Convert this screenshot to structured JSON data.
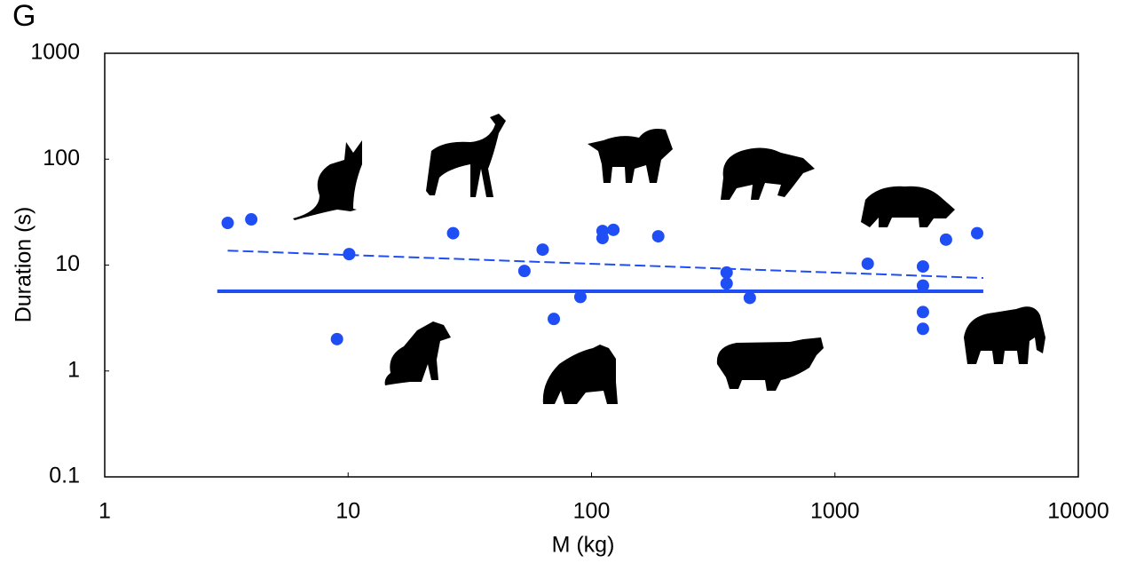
{
  "chart_data": {
    "type": "scatter",
    "panel_label": "G",
    "x_label": "M (kg)",
    "y_label": "Duration (s)",
    "xscale": "log",
    "yscale": "log",
    "xlim": [
      1,
      10000
    ],
    "ylim": [
      0.1,
      1000
    ],
    "xticks": [
      1,
      10,
      100,
      1000,
      10000
    ],
    "yticks": [
      0.1,
      1,
      10,
      100,
      1000
    ],
    "series": [
      {
        "color": "#1f4ef5",
        "x": [
          3.2,
          4.0,
          9.0,
          10.1,
          27,
          53,
          63,
          70,
          90,
          111,
          111,
          123,
          188,
          359,
          359,
          447,
          1364,
          2300,
          2300,
          2300,
          2300,
          2860,
          3840
        ],
        "values": [
          25,
          27,
          2.0,
          12.7,
          20,
          8.8,
          14,
          3.1,
          5.0,
          21,
          18,
          21.5,
          18.7,
          8.5,
          6.7,
          4.9,
          10.3,
          9.7,
          6.4,
          3.6,
          2.5,
          17.4,
          20
        ]
      }
    ],
    "lines": [
      {
        "color": "#1f4ef5",
        "style": "solid",
        "x": [
          2.9,
          4070
        ],
        "values": [
          5.66,
          5.66
        ]
      },
      {
        "color": "#1f4ef5",
        "style": "dashed",
        "x": [
          3.2,
          4070
        ],
        "values": [
          13.7,
          7.55
        ]
      }
    ]
  }
}
